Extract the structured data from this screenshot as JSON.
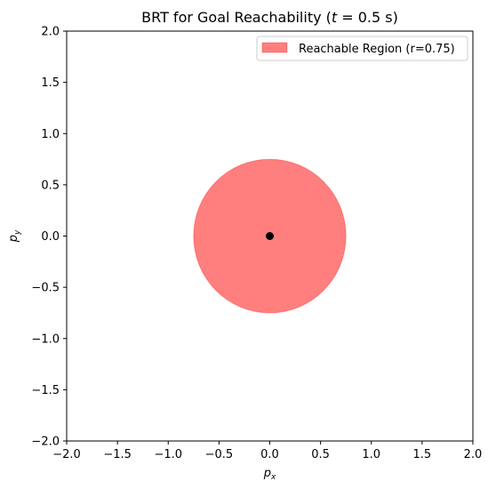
{
  "chart_data": {
    "type": "scatter",
    "title": "BRT for Goal Reachability (t = 0.5 s)",
    "title_parts": {
      "prefix": "BRT for Goal Reachability (",
      "var": "t",
      "eq": " = 0.5 s)"
    },
    "xlabel": {
      "base": "p",
      "sub": "x"
    },
    "ylabel": {
      "base": "p",
      "sub": "y"
    },
    "xlim": [
      -2.0,
      2.0
    ],
    "ylim": [
      -2.0,
      2.0
    ],
    "xticks": [
      -2.0,
      -1.5,
      -1.0,
      -0.5,
      0.0,
      0.5,
      1.0,
      1.5,
      2.0
    ],
    "yticks": [
      -2.0,
      -1.5,
      -1.0,
      -0.5,
      0.0,
      0.5,
      1.0,
      1.5,
      2.0
    ],
    "xtick_labels": [
      "−2.0",
      "−1.5",
      "−1.0",
      "−0.5",
      "0.0",
      "0.5",
      "1.0",
      "1.5",
      "2.0"
    ],
    "ytick_labels": [
      "−2.0",
      "−1.5",
      "−1.0",
      "−0.5",
      "0.0",
      "0.5",
      "1.0",
      "1.5",
      "2.0"
    ],
    "grid": false,
    "legend_placement": "top-right",
    "region": {
      "label": "Reachable Region (r=0.75)",
      "center": [
        0.0,
        0.0
      ],
      "radius": 0.75,
      "fill_color": "#ff0000",
      "fill_opacity": 0.5
    },
    "goal_point": {
      "x": 0.0,
      "y": 0.0,
      "color": "#000000"
    }
  }
}
